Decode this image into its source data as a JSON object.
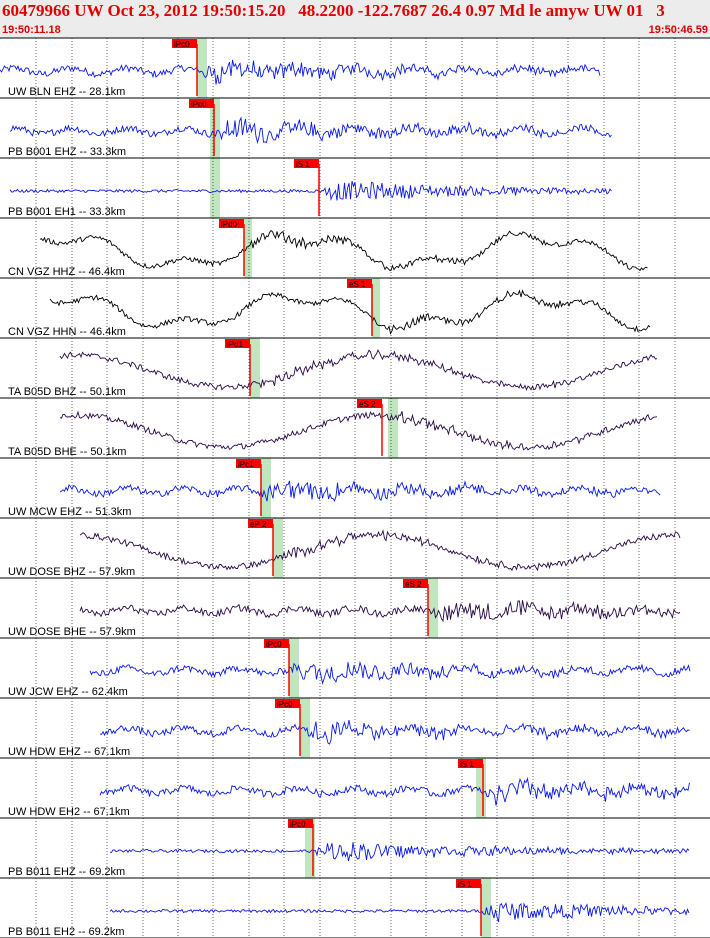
{
  "header": {
    "title": "60479966 UW Oct 23, 2012 19:50:15.20   48.2200 -122.7687 26.4 0.97 Md le amyw UW 01   3",
    "time_start": "19:50:11.18",
    "time_end": "19:50:46.59"
  },
  "colors": {
    "blue": "#0a1ae6",
    "black": "#000000",
    "purple": "#2a0a4a",
    "pick": "#ff0000",
    "band": "#bfe6bf"
  },
  "traces": [
    {
      "label": "UW BLN EHZ -- 28.1km",
      "color": "blue",
      "pick": "iPc0",
      "pick_kind": "P",
      "band": true
    },
    {
      "label": "PB B001 EHZ -- 33.3km",
      "color": "blue",
      "pick": "iPc0",
      "pick_kind": "P",
      "band": true
    },
    {
      "label": "PB B001 EH1 -- 33.3km",
      "color": "blue",
      "pick": "iS 1",
      "pick_kind": "S",
      "band": true
    },
    {
      "label": "CN VGZ HHZ -- 46.4km",
      "color": "black",
      "pick": "iPd0",
      "pick_kind": "P",
      "band": true
    },
    {
      "label": "CN VGZ HHN -- 46.4km",
      "color": "black",
      "pick": "eS 1",
      "pick_kind": "S",
      "band": true
    },
    {
      "label": "TA B05D BHZ -- 50.1km",
      "color": "purple",
      "pick": "iPd1",
      "pick_kind": "P",
      "band": true
    },
    {
      "label": "TA B05D BHE -- 50.1km",
      "color": "purple",
      "pick": "eS 2",
      "pick_kind": "S",
      "band": true
    },
    {
      "label": "UW MCW EHZ -- 51.3km",
      "color": "blue",
      "pick": "iPc1",
      "pick_kind": "P",
      "band": true
    },
    {
      "label": "UW DOSE BHZ -- 57.9km",
      "color": "purple",
      "pick": "eP 2",
      "pick_kind": "P",
      "band": true
    },
    {
      "label": "UW DOSE BHE -- 57.9km",
      "color": "purple",
      "pick": "eS 2",
      "pick_kind": "S",
      "band": true
    },
    {
      "label": "UW JCW EHZ -- 62.4km",
      "color": "blue",
      "pick": "iPc0",
      "pick_kind": "P",
      "band": true
    },
    {
      "label": "UW HDW EHZ -- 67.1km",
      "color": "blue",
      "pick": "iPc0",
      "pick_kind": "P",
      "band": true
    },
    {
      "label": "UW HDW EH2 -- 67.1km",
      "color": "blue",
      "pick": "iS 1",
      "pick_kind": "S",
      "band": true
    },
    {
      "label": "PB B011 EHZ -- 69.2km",
      "color": "blue",
      "pick": "iPc0",
      "pick_kind": "P",
      "band": true
    },
    {
      "label": "PB B011 EH2 -- 69.2km",
      "color": "blue",
      "pick": "iS 1",
      "pick_kind": "S",
      "band": true
    }
  ]
}
